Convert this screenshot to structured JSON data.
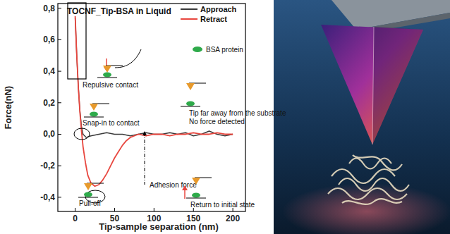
{
  "chart_data": {
    "type": "line",
    "title": "TOCNF_Tip-BSA in Liquid",
    "x_label": "Tip-sample separation (nm)",
    "y_label": "Force(nN)",
    "xlim": [
      -22,
      216
    ],
    "ylim": [
      -0.49,
      0.83
    ],
    "xticks": [
      0,
      50,
      100,
      150,
      200
    ],
    "yticks": [
      {
        "value": -0.4,
        "label": "-0,4"
      },
      {
        "value": -0.2,
        "label": "-0,2"
      },
      {
        "value": 0.0,
        "label": "0,0"
      },
      {
        "value": 0.2,
        "label": "0,2"
      },
      {
        "value": 0.4,
        "label": "0,4"
      },
      {
        "value": 0.6,
        "label": "0,6"
      },
      {
        "value": 0.8,
        "label": "0,8"
      }
    ],
    "legend": "upper right",
    "series": [
      {
        "name": "Approach",
        "color": "#3a3a3a",
        "x": [
          0,
          2,
          4,
          6,
          8,
          10,
          14,
          20,
          30,
          40,
          50,
          60,
          70,
          80,
          90,
          100,
          110,
          120,
          130,
          140,
          150,
          160,
          170,
          180,
          190,
          200
        ],
        "values": [
          0.74,
          0.5,
          0.3,
          0.15,
          0.05,
          0.0,
          -0.02,
          -0.01,
          0.0,
          0.01,
          0.0,
          0.0,
          -0.01,
          0.0,
          0.01,
          0.0,
          0.0,
          0.01,
          0.0,
          0.01,
          -0.01,
          0.0,
          0.02,
          0.0,
          -0.01,
          0.0
        ]
      },
      {
        "name": "Retract",
        "color": "#e8473f",
        "x": [
          0,
          2,
          4,
          6,
          8,
          10,
          13,
          16,
          20,
          25,
          30,
          35,
          40,
          45,
          50,
          55,
          60,
          65,
          70,
          75,
          80,
          90,
          100,
          110,
          120,
          130,
          140,
          150,
          160,
          170,
          180,
          190,
          200
        ],
        "values": [
          0.75,
          0.5,
          0.3,
          0.14,
          0.02,
          -0.08,
          -0.18,
          -0.26,
          -0.31,
          -0.33,
          -0.32,
          -0.29,
          -0.25,
          -0.2,
          -0.15,
          -0.11,
          -0.07,
          -0.04,
          -0.02,
          -0.01,
          0.0,
          -0.01,
          0.0,
          0.0,
          -0.01,
          0.0,
          0.0,
          0.01,
          0.0,
          0.0,
          0.01,
          0.0,
          0.0
        ]
      }
    ],
    "annotations": [
      "Repulsive contact",
      "Snap-in to contact",
      "Tip far away from the substrate",
      "No force detected",
      "Return to initial state",
      "Pull-off",
      "Adhesion force",
      "BSA protein"
    ]
  }
}
